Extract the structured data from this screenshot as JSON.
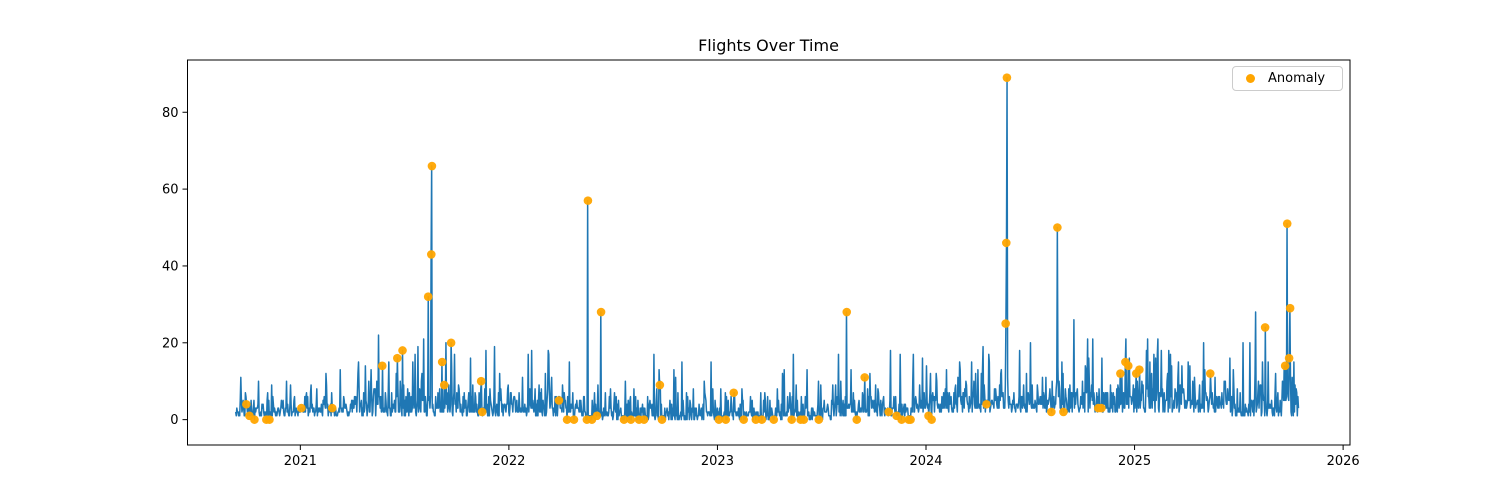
{
  "figure": {
    "title": "Flights Over Time",
    "legend": {
      "label": "Anomaly",
      "marker_color": "#ffa500"
    }
  },
  "chart_data": {
    "type": "line",
    "title": "Flights Over Time",
    "xlabel": "",
    "ylabel": "",
    "grid": false,
    "legend_position": "upper right",
    "line_color": "#1f77b4",
    "anomaly_color": "#ffa500",
    "x_ticks": [
      "2021",
      "2022",
      "2023",
      "2024",
      "2025",
      "2026"
    ],
    "y_ticks": [
      "0",
      "20",
      "40",
      "60",
      "80"
    ],
    "y_tick_values": [
      0,
      20,
      40,
      60,
      80
    ],
    "x_tick_values": [
      2021,
      2022,
      2023,
      2024,
      2025,
      2026
    ],
    "xlim": [
      2020.459,
      2026.033
    ],
    "ylim": [
      -6.6,
      93.6
    ],
    "data_range_years": [
      2020.69,
      2025.787
    ],
    "sampling": "daily",
    "series": [
      {
        "name": "Flights",
        "role": "line"
      },
      {
        "name": "Anomaly",
        "role": "scatter"
      }
    ],
    "anomalies": [
      [
        2020.741,
        4
      ],
      [
        2020.756,
        1
      ],
      [
        2020.78,
        0
      ],
      [
        2020.837,
        0
      ],
      [
        2020.852,
        0
      ],
      [
        2021.005,
        3
      ],
      [
        2021.153,
        3
      ],
      [
        2021.393,
        14
      ],
      [
        2021.465,
        16
      ],
      [
        2021.49,
        18
      ],
      [
        2021.613,
        32
      ],
      [
        2021.628,
        43
      ],
      [
        2021.631,
        66
      ],
      [
        2021.68,
        15
      ],
      [
        2021.69,
        9
      ],
      [
        2021.723,
        20
      ],
      [
        2021.867,
        10
      ],
      [
        2021.872,
        2
      ],
      [
        2022.24,
        5
      ],
      [
        2022.279,
        0
      ],
      [
        2022.312,
        0
      ],
      [
        2022.374,
        0
      ],
      [
        2022.379,
        57
      ],
      [
        2022.398,
        0
      ],
      [
        2022.422,
        1
      ],
      [
        2022.442,
        28
      ],
      [
        2022.552,
        0
      ],
      [
        2022.585,
        0
      ],
      [
        2022.624,
        0
      ],
      [
        2022.648,
        0
      ],
      [
        2022.724,
        9
      ],
      [
        2022.734,
        0
      ],
      [
        2023.007,
        0
      ],
      [
        2023.04,
        0
      ],
      [
        2023.078,
        7
      ],
      [
        2023.126,
        0
      ],
      [
        2023.184,
        0
      ],
      [
        2023.213,
        0
      ],
      [
        2023.27,
        0
      ],
      [
        2023.356,
        0
      ],
      [
        2023.399,
        0
      ],
      [
        2023.414,
        0
      ],
      [
        2023.486,
        0
      ],
      [
        2023.62,
        28
      ],
      [
        2023.668,
        0
      ],
      [
        2023.706,
        11
      ],
      [
        2023.821,
        2
      ],
      [
        2023.859,
        1
      ],
      [
        2023.883,
        0
      ],
      [
        2023.917,
        0
      ],
      [
        2023.926,
        0
      ],
      [
        2024.012,
        1
      ],
      [
        2024.027,
        0
      ],
      [
        2024.29,
        4
      ],
      [
        2024.382,
        25
      ],
      [
        2024.385,
        46
      ],
      [
        2024.388,
        89
      ],
      [
        2024.601,
        2
      ],
      [
        2024.63,
        50
      ],
      [
        2024.659,
        2
      ],
      [
        2024.826,
        3
      ],
      [
        2024.841,
        3
      ],
      [
        2024.932,
        12
      ],
      [
        2024.956,
        15
      ],
      [
        2024.97,
        14
      ],
      [
        2025.008,
        12
      ],
      [
        2025.023,
        13
      ],
      [
        2025.363,
        12
      ],
      [
        2025.626,
        24
      ],
      [
        2025.722,
        14
      ],
      [
        2025.732,
        51
      ],
      [
        2025.741,
        16
      ],
      [
        2025.746,
        29
      ]
    ],
    "extra_spikes": [
      [
        2021.19,
        13
      ],
      [
        2021.28,
        15
      ],
      [
        2021.374,
        22
      ],
      [
        2021.55,
        17
      ],
      [
        2021.93,
        19
      ],
      [
        2022.11,
        18
      ],
      [
        2022.19,
        17
      ],
      [
        2022.695,
        17
      ],
      [
        2022.97,
        15
      ],
      [
        2023.32,
        13
      ],
      [
        2023.73,
        12
      ],
      [
        2023.83,
        18
      ],
      [
        2023.94,
        17
      ],
      [
        2024.16,
        15
      ],
      [
        2024.45,
        18
      ],
      [
        2024.5,
        20
      ],
      [
        2024.71,
        26
      ],
      [
        2024.78,
        16
      ],
      [
        2025.11,
        17
      ],
      [
        2025.21,
        15
      ],
      [
        2025.33,
        20
      ],
      [
        2025.52,
        20
      ],
      [
        2025.58,
        28
      ],
      [
        2025.64,
        15
      ]
    ],
    "baseline_segments": [
      {
        "from": 2020.69,
        "to": 2021.25,
        "offset": 1,
        "mean": 2.0
      },
      {
        "from": 2021.25,
        "to": 2021.8,
        "offset": 1,
        "mean": 3.5
      },
      {
        "from": 2021.8,
        "to": 2022.35,
        "offset": 1,
        "mean": 3.0
      },
      {
        "from": 2022.35,
        "to": 2023.55,
        "offset": 0,
        "mean": 2.5
      },
      {
        "from": 2023.55,
        "to": 2023.95,
        "offset": 1,
        "mean": 2.5
      },
      {
        "from": 2023.95,
        "to": 2024.75,
        "offset": 2,
        "mean": 3.5
      },
      {
        "from": 2024.75,
        "to": 2025.45,
        "offset": 2,
        "mean": 4.0
      },
      {
        "from": 2025.45,
        "to": 2025.787,
        "offset": 1,
        "mean": 3.5
      }
    ]
  }
}
